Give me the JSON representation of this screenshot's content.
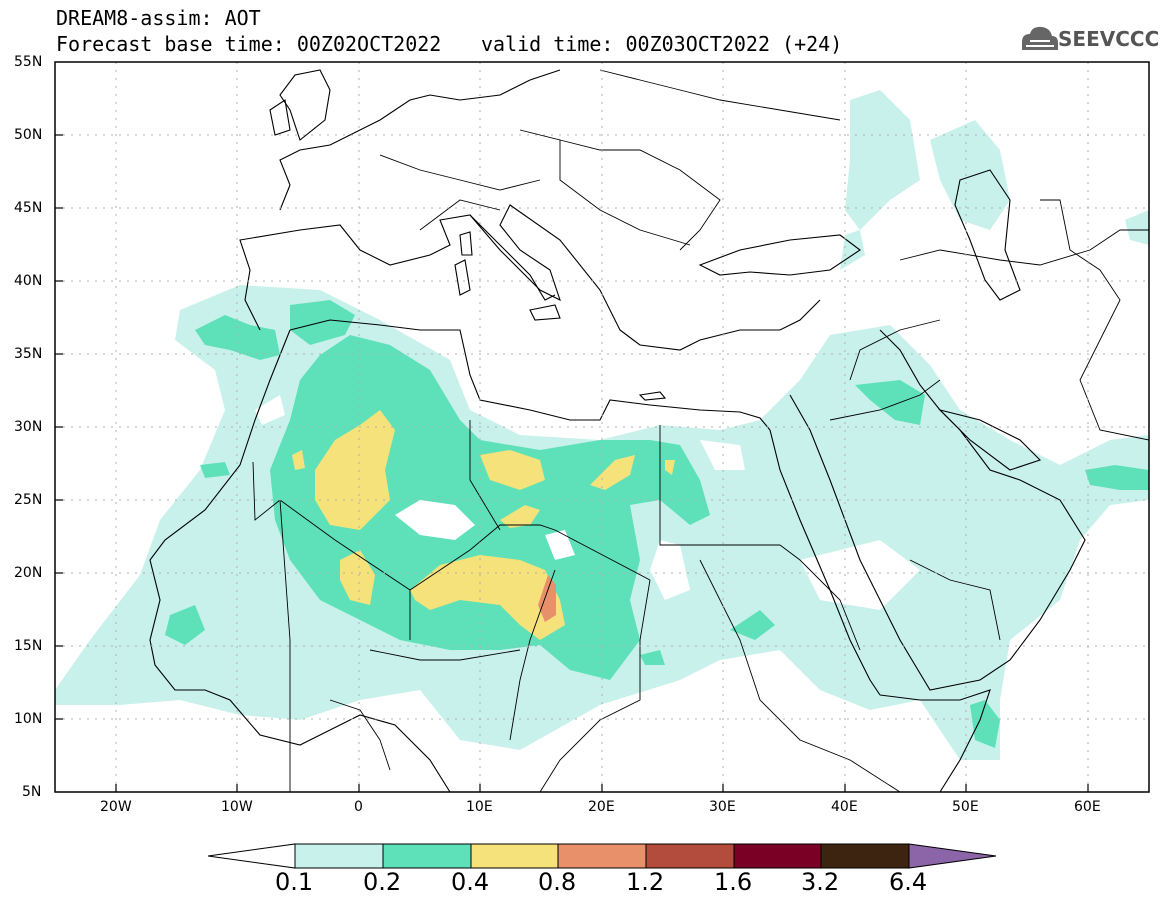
{
  "title": {
    "line1": "DREAM8-assim: AOT",
    "line2": "Forecast base time: 00Z02OCT2022",
    "valid": "valid time: 00Z03OCT2022 (+24)"
  },
  "logo": {
    "text": "SEEVCCC",
    "icon": "cloud-icon",
    "color": "#555555"
  },
  "map": {
    "variable": "AOT",
    "lat_range": [
      5,
      55
    ],
    "lon_range": [
      -25,
      65
    ],
    "lat_labels": [
      "55N",
      "50N",
      "45N",
      "40N",
      "35N",
      "30N",
      "25N",
      "20N",
      "15N",
      "10N",
      "5N"
    ],
    "lon_labels": [
      "20W",
      "10W",
      "0",
      "10E",
      "20E",
      "30E",
      "40E",
      "50E",
      "60E"
    ],
    "grid": "dotted"
  },
  "colorbar": {
    "levels": [
      "0.1",
      "0.2",
      "0.4",
      "0.8",
      "1.2",
      "1.6",
      "3.2",
      "6.4"
    ],
    "colors": [
      "#c8f1ec",
      "#5ee1b9",
      "#f5e27a",
      "#e8906a",
      "#b34c3c",
      "#7a0025",
      "#3d2410",
      "#8c64a8"
    ]
  }
}
